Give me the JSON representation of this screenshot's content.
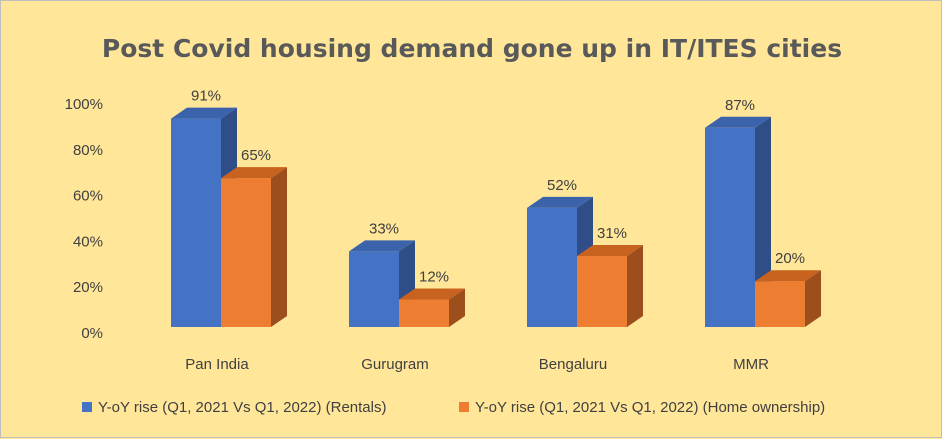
{
  "chart_data": {
    "type": "bar",
    "title": "Post Covid housing demand gone up in IT/ITES cities",
    "categories": [
      "Pan India",
      "Gurugram",
      "Bengaluru",
      "MMR"
    ],
    "series": [
      {
        "name": "Y-oY rise (Q1, 2021 Vs Q1, 2022) (Rentals)",
        "values": [
          91,
          33,
          52,
          87
        ],
        "labels": [
          "91%",
          "33%",
          "52%",
          "87%"
        ],
        "color": "#4472c4",
        "side_color": "#2f4e87",
        "top_color": "#3b63ab"
      },
      {
        "name": "Y-oY rise (Q1, 2021 Vs Q1, 2022) (Home ownership)",
        "values": [
          65,
          12,
          31,
          20
        ],
        "labels": [
          "65%",
          "12%",
          "31%",
          "20%"
        ],
        "color": "#ed7d31",
        "side_color": "#9c4f1c",
        "top_color": "#c7621f"
      }
    ],
    "y_ticks": [
      "0%",
      "20%",
      "40%",
      "60%",
      "80%",
      "100%"
    ],
    "ylim": [
      0,
      100
    ],
    "grid": false,
    "legend_position": "bottom",
    "bar_style": "3d-column"
  }
}
